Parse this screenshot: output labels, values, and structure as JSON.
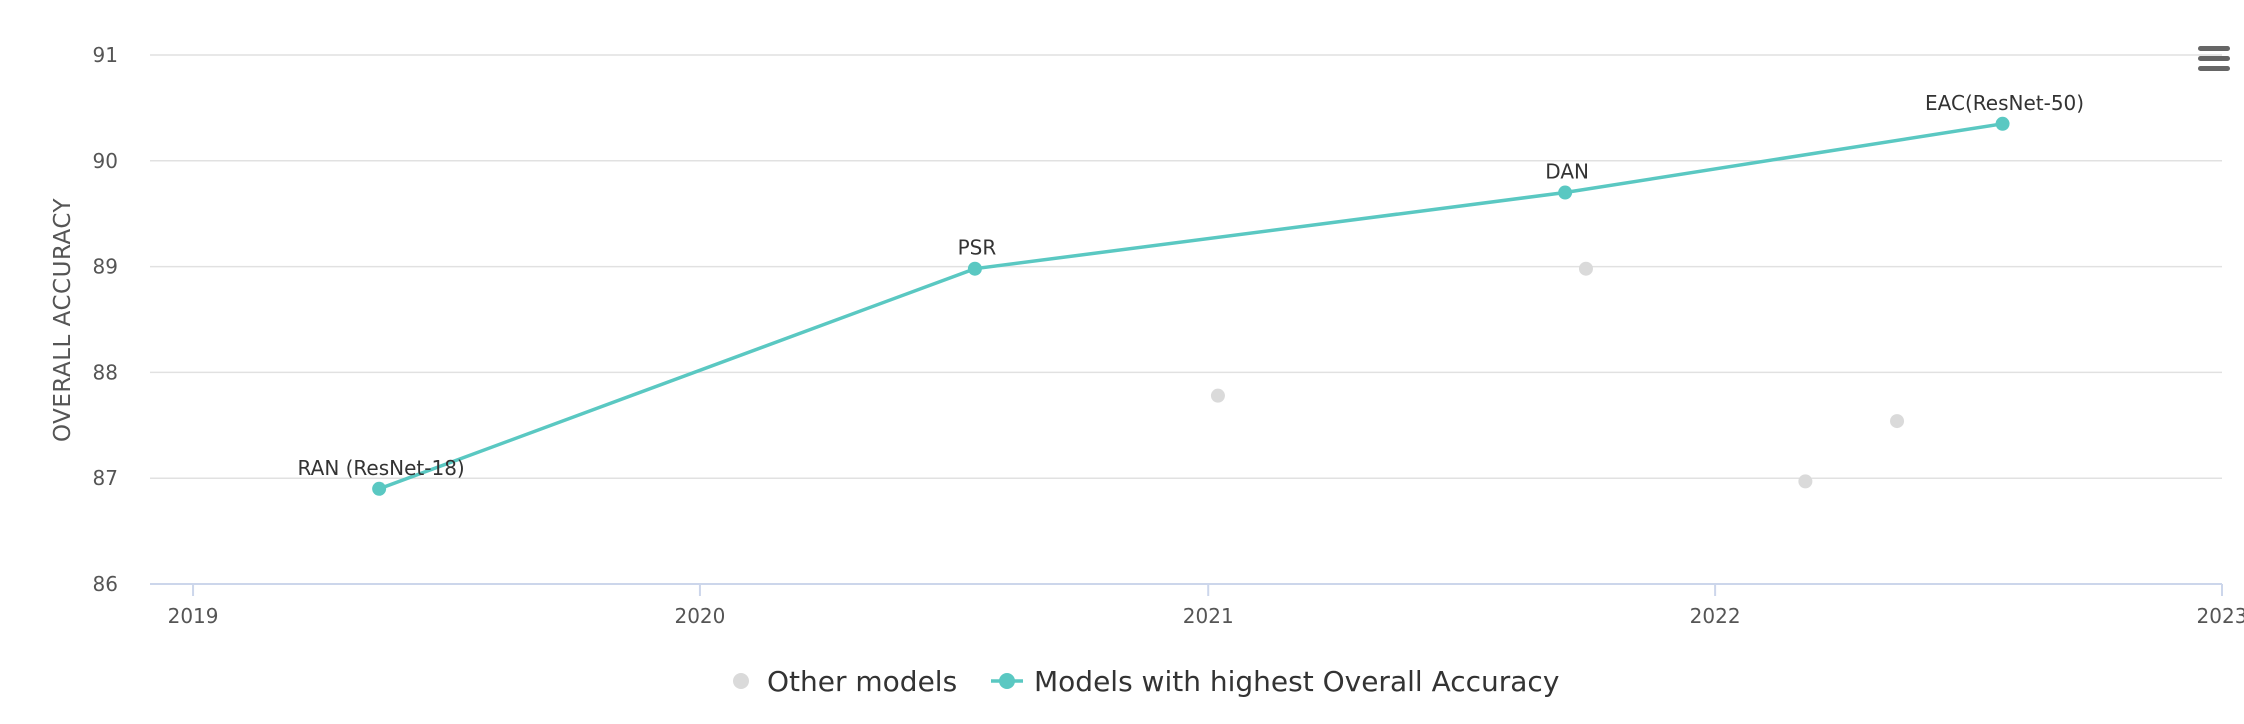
{
  "menu_icon": "hamburger-menu-icon",
  "colors": {
    "highlight": "#5ac8c2",
    "other": "#dadada",
    "grid": "#e1e1e1",
    "axis": "#ccd6eb"
  },
  "chart_data": {
    "type": "line",
    "title": "",
    "xlabel": "",
    "ylabel": "OVERALL ACCURACY",
    "xlim": [
      "2018-12-01",
      "2023-01-01"
    ],
    "ylim": [
      86,
      91
    ],
    "x_ticks": [
      "2019",
      "2020",
      "2021",
      "2022",
      "2023"
    ],
    "y_ticks": [
      "86",
      "87",
      "88",
      "89",
      "90",
      "91"
    ],
    "grid": true,
    "legend_position": "bottom",
    "legend": [
      "Other models",
      "Models with highest Overall Accuracy"
    ],
    "series": [
      {
        "name": "Models with highest Overall Accuracy",
        "kind": "line",
        "points": [
          {
            "x": "2019-05-15",
            "y": 86.9,
            "label": "RAN (ResNet-18)"
          },
          {
            "x": "2020-07-17",
            "y": 88.98,
            "label": "PSR"
          },
          {
            "x": "2021-09-15",
            "y": 89.7,
            "label": "DAN"
          },
          {
            "x": "2022-07-27",
            "y": 90.35,
            "label": "EAC(ResNet-50)"
          }
        ]
      },
      {
        "name": "Other models",
        "kind": "scatter",
        "points": [
          {
            "x": "2021-01-08",
            "y": 87.78
          },
          {
            "x": "2021-09-30",
            "y": 88.98
          },
          {
            "x": "2022-03-07",
            "y": 86.97
          },
          {
            "x": "2022-05-12",
            "y": 87.54
          }
        ]
      }
    ]
  }
}
